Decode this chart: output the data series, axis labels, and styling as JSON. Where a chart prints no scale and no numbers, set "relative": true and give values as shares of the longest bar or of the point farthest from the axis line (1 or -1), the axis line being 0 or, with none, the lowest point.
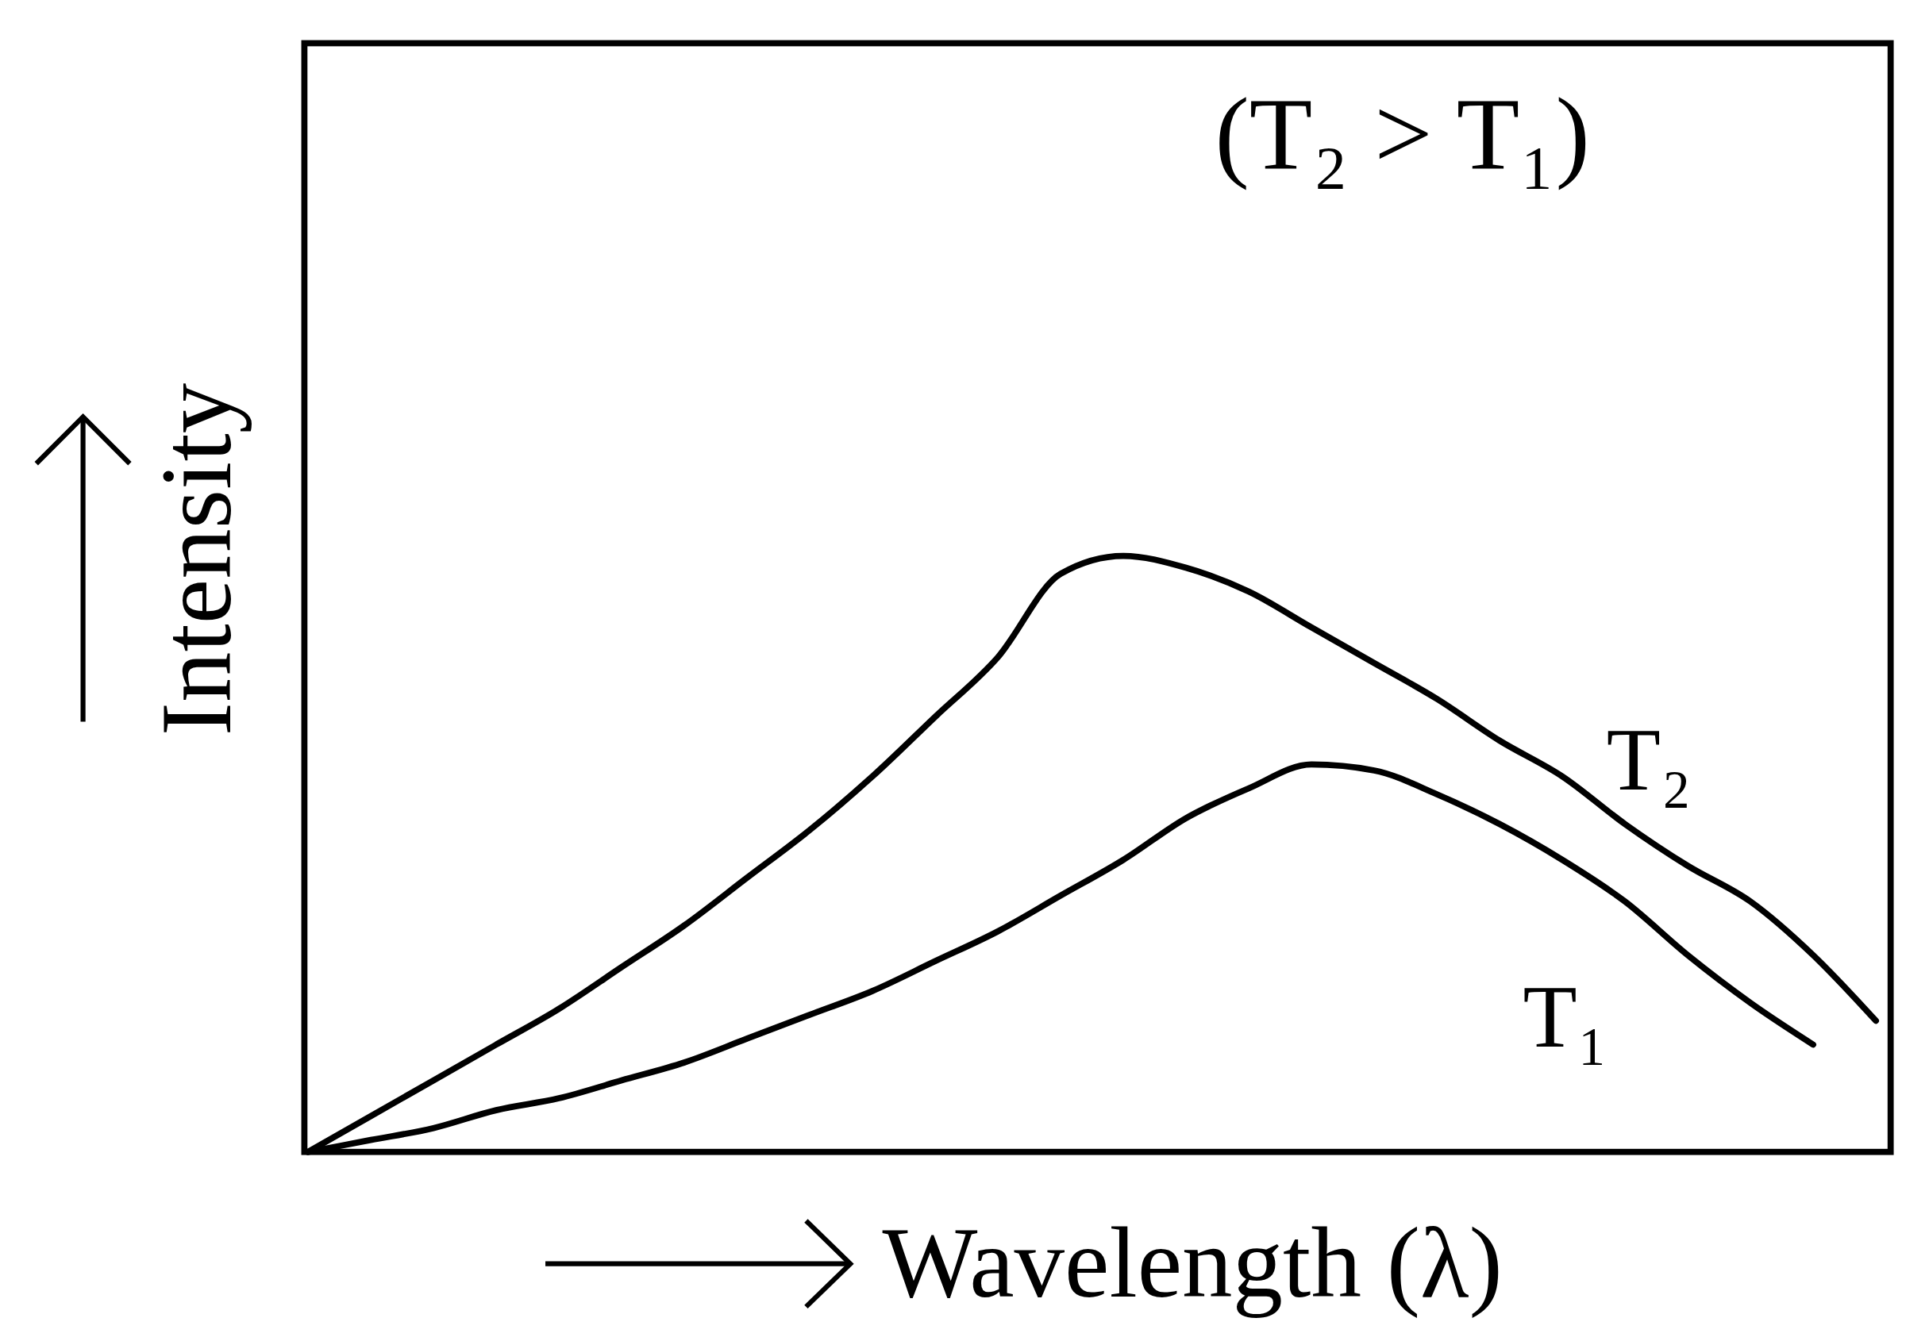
{
  "chart_data": {
    "type": "line",
    "relative": true,
    "xlabel": "Wavelength (λ)",
    "ylabel": "Intensity",
    "annotations": [
      "(T₂ > T₁)"
    ],
    "categories": [
      null,
      null,
      null,
      null,
      null,
      null,
      null,
      null,
      null,
      null,
      null,
      null,
      null,
      null,
      null,
      null,
      null,
      null,
      null,
      null,
      null,
      null,
      null,
      null,
      null,
      null
    ],
    "marker": "none",
    "line_style": "solid",
    "series": [
      {
        "name": "T₂",
        "color": "#000000",
        "values": [
          0,
          0.06,
          0.12,
          0.18,
          0.24,
          0.31,
          0.38,
          0.46,
          0.54,
          0.63,
          0.73,
          0.83,
          0.97,
          1,
          0.98,
          0.94,
          0.88,
          0.82,
          0.76,
          0.69,
          0.63,
          0.55,
          0.48,
          0.42,
          0.33,
          0.22
        ]
      },
      {
        "name": "T₁",
        "color": "#000000",
        "values": [
          0,
          0.02,
          0.04,
          0.07,
          0.09,
          0.12,
          0.15,
          0.19,
          0.23,
          0.27,
          0.32,
          0.37,
          0.43,
          0.49,
          0.56,
          0.61,
          0.65,
          0.64,
          0.6,
          0.55,
          0.49,
          0.42,
          0.33,
          0.25,
          0.18,
          null
        ]
      }
    ]
  }
}
